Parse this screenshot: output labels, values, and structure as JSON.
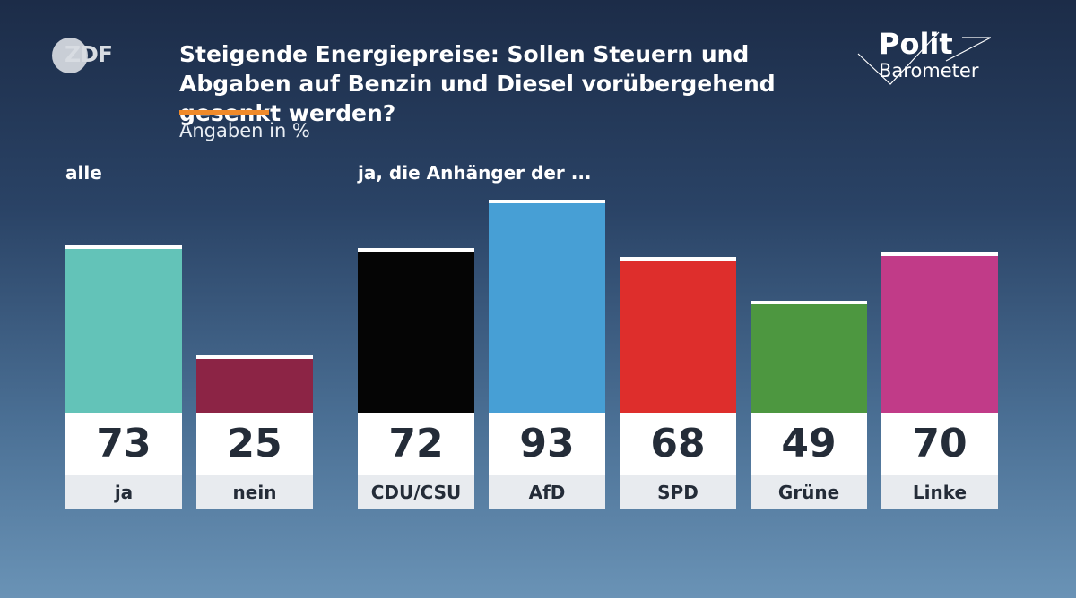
{
  "logo": {
    "text": "ZDF"
  },
  "brand": {
    "line1": "Polit",
    "line2": "Barometer"
  },
  "chart_data": {
    "type": "bar",
    "title": "Steigende Energiepreise: Sollen Steuern und Abgaben auf Benzin und Diesel vorübergehend gesenkt werden?",
    "subtitle": "Angaben in %",
    "ylim": [
      0,
      100
    ],
    "groups": [
      {
        "label": "alle",
        "categories": [
          "ja",
          "nein"
        ],
        "values": [
          73,
          25
        ],
        "colors": [
          "#63c3b8",
          "#8c2445"
        ]
      },
      {
        "label": "ja, die Anhänger der ...",
        "categories": [
          "CDU/CSU",
          "AfD",
          "SPD",
          "Grüne",
          "Linke"
        ],
        "values": [
          72,
          93,
          68,
          49,
          70
        ],
        "colors": [
          "#050505",
          "#479fd5",
          "#de2e2c",
          "#4d9740",
          "#c13b88"
        ]
      }
    ]
  }
}
